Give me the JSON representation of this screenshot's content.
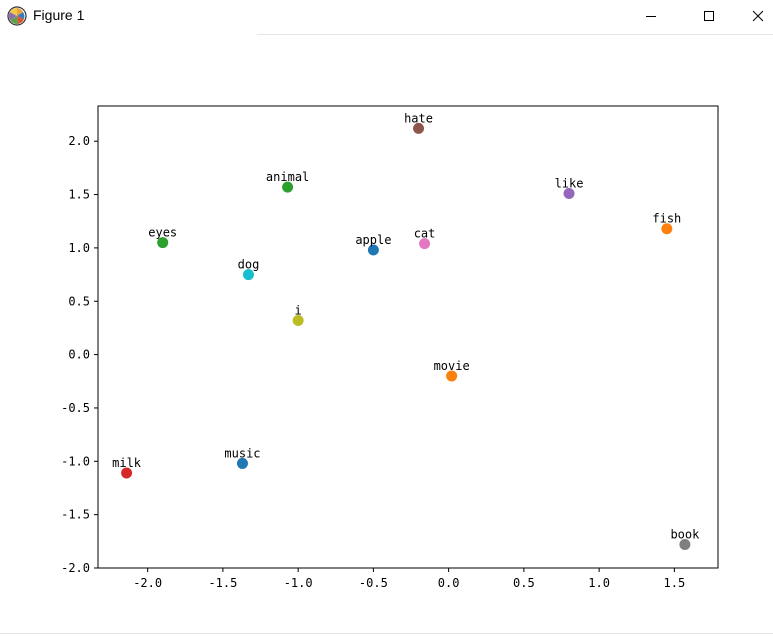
{
  "window": {
    "title": "Figure 1",
    "icon": "matplotlib-logo-icon",
    "minimize_icon": "minimize-icon",
    "maximize_icon": "maximize-icon",
    "close_icon": "close-icon"
  },
  "chart_data": {
    "type": "scatter",
    "xlim": [
      -2.33,
      1.79
    ],
    "ylim": [
      -2.0,
      2.33
    ],
    "x_ticks": [
      -2.0,
      -1.5,
      -1.0,
      -0.5,
      0.0,
      0.5,
      1.0,
      1.5
    ],
    "y_ticks": [
      -2.0,
      -1.5,
      -1.0,
      -0.5,
      0.0,
      0.5,
      1.0,
      1.5,
      2.0
    ],
    "x_tick_labels": [
      "-2.0",
      "-1.5",
      "-1.0",
      "-0.5",
      "0.0",
      "0.5",
      "1.0",
      "1.5"
    ],
    "y_tick_labels": [
      "-2.0",
      "-1.5",
      "-1.0",
      "-0.5",
      "0.0",
      "0.5",
      "1.0",
      "1.5",
      "2.0"
    ],
    "grid": false,
    "points": [
      {
        "label": "apple",
        "x": -0.5,
        "y": 0.98,
        "color": "#1f77b4"
      },
      {
        "label": "movie",
        "x": 0.02,
        "y": -0.2,
        "color": "#ff7f0e"
      },
      {
        "label": "animal",
        "x": -1.07,
        "y": 1.57,
        "color": "#2ca02c"
      },
      {
        "label": "milk",
        "x": -2.14,
        "y": -1.11,
        "color": "#d62728"
      },
      {
        "label": "like",
        "x": 0.8,
        "y": 1.51,
        "color": "#9467bd"
      },
      {
        "label": "hate",
        "x": -0.2,
        "y": 2.12,
        "color": "#8c564b"
      },
      {
        "label": "cat",
        "x": -0.16,
        "y": 1.04,
        "color": "#e377c2"
      },
      {
        "label": "book",
        "x": 1.57,
        "y": -1.78,
        "color": "#7f7f7f"
      },
      {
        "label": "i",
        "x": -1.0,
        "y": 0.32,
        "color": "#bcbd22"
      },
      {
        "label": "dog",
        "x": -1.33,
        "y": 0.75,
        "color": "#17becf"
      },
      {
        "label": "music",
        "x": -1.37,
        "y": -1.02,
        "color": "#1f77b4"
      },
      {
        "label": "fish",
        "x": 1.45,
        "y": 1.18,
        "color": "#ff7f0e"
      },
      {
        "label": "eyes",
        "x": -1.9,
        "y": 1.05,
        "color": "#2ca02c"
      }
    ]
  }
}
